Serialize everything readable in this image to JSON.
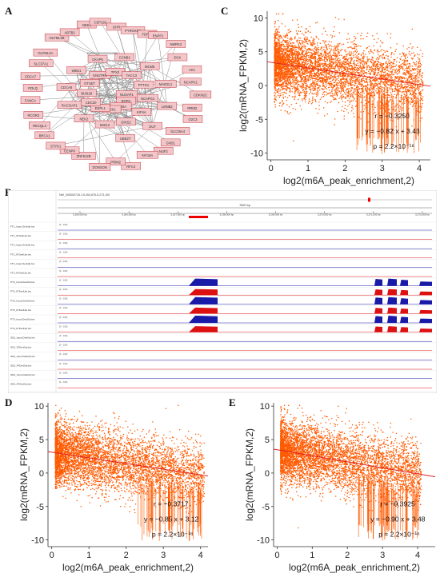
{
  "panels": {
    "A": "A",
    "B": "B",
    "C": "C",
    "D": "D",
    "E": "E"
  },
  "colors": {
    "scatter": "#ff5a00",
    "fit_line": "#e02020",
    "node_fill": "#f3c6c9",
    "node_stroke": "#c23b44",
    "track_blue": "#1a1aa8",
    "track_red": "#dd1111",
    "gene_blue": "#1a1aa8"
  },
  "network": {
    "nodes": [
      "OLFML2A",
      "OLFML2B",
      "ABTB2",
      "NEK3",
      "CEP192",
      "GHR",
      "PYROXD2",
      "FDFT1",
      "ENPP1",
      "NMRK2",
      "DCK",
      "AK1",
      "NCAPH2",
      "NUSAP1",
      "BORA",
      "KIF20A",
      "CDK1",
      "CDKN2C",
      "ESPL1",
      "CDC20",
      "BUB1B",
      "OTSET",
      "RRM2",
      "O2C3",
      "SLC25A4",
      "KNSTRN",
      "TPX2",
      "TACC3",
      "PTTG1",
      "NCAPG2",
      "KIF4A",
      "GINS2",
      "GNS1",
      "MIS12",
      "NEK2",
      "NUF2",
      "RACGAP1",
      "CDCA8",
      "WEE1",
      "CKAP5",
      "KIF18A",
      "CCNB2",
      "MCM5",
      "MAD2L1",
      "LMNB2",
      "DUT",
      "UBE2T",
      "RFC4",
      "PRIM2",
      "DONSON",
      "ZNF512B",
      "CENPK",
      "STYK1",
      "BRCA1",
      "RECQL4",
      "RCOR3",
      "FANCA",
      "POLQ",
      "CDCA7",
      "SLC37A1"
    ],
    "center_label": "ENSG00000000000560"
  },
  "browser": {
    "locus": "NW_005000716.1:5,264,876-5,273,109",
    "scale_label": "7820 bp",
    "ticks": [
      "5,265,000 bp",
      "5,266,000 bp",
      "5,267,000 bp",
      "5,268,000 bp",
      "5,269,000 bp",
      "5,270,000 bp",
      "5,271,000 bp",
      "5,272,000 bp"
    ],
    "range_label": "[0 - 100]",
    "tracks": [
      {
        "name": "FT1_Input.DedUlp.bw",
        "color": "blue",
        "signal": false
      },
      {
        "name": "FT1_IP.DedUlp.bw",
        "color": "red",
        "signal": false
      },
      {
        "name": "FT2_Input.DedUlp.bw",
        "color": "blue",
        "signal": false
      },
      {
        "name": "FT2_IP.DedUlp.bw",
        "color": "red",
        "signal": false
      },
      {
        "name": "FT3_Input.DedUlp.bw",
        "color": "blue",
        "signal": false
      },
      {
        "name": "FT3_IP.DedUlp.bw",
        "color": "red",
        "signal": false
      },
      {
        "name": "PT1_Input.DedUlp.bw",
        "color": "blue",
        "signal": true
      },
      {
        "name": "PT1_IP.DedUlp.bw",
        "color": "red",
        "signal": true
      },
      {
        "name": "PT2_Input.DedUlp.bw",
        "color": "blue",
        "signal": true
      },
      {
        "name": "PT2_IP.DedUlp.bw",
        "color": "red",
        "signal": true
      },
      {
        "name": "PT3_Input.DedUlp.bw",
        "color": "blue",
        "signal": true
      },
      {
        "name": "PT3_IP.DedUlp.bw",
        "color": "red",
        "signal": true
      },
      {
        "name": "SD1_Input.DedUlp.bw",
        "color": "blue",
        "signal": false
      },
      {
        "name": "SD1_IP.DedUlp.bw",
        "color": "red",
        "signal": false
      },
      {
        "name": "SD2_Input.DedUlp.bw",
        "color": "blue",
        "signal": false
      },
      {
        "name": "SD2_IP.DedUlp.bw",
        "color": "red",
        "signal": false
      },
      {
        "name": "SD3_Input.DedUlp.bw",
        "color": "blue",
        "signal": false
      },
      {
        "name": "SD3_IP.DedUlp.bw",
        "color": "red",
        "signal": false
      }
    ],
    "gene_track": "genome.gtf",
    "gene_name": "DCK1"
  },
  "chart_data": [
    {
      "panel": "C",
      "type": "scatter",
      "xlabel": "log2(m6A_peak_enrichment,2)",
      "ylabel": "log2(mRNA_FPKM,2)",
      "xlim": [
        -0.1,
        4.3
      ],
      "ylim": [
        -11,
        11
      ],
      "xticks": [
        "0",
        "1",
        "2",
        "3",
        "4"
      ],
      "yticks": [
        "-10",
        "-5",
        "0",
        "5",
        "10"
      ],
      "fit": {
        "slope": -0.82,
        "intercept": 3.43
      },
      "annotations": [
        "r = −0.3250",
        "y = −0.82 x + 3.43",
        "p = 2.2×10⁻¹⁶"
      ]
    },
    {
      "panel": "D",
      "type": "scatter",
      "xlabel": "log2(m6A_peak_enrichment,2)",
      "ylabel": "log2(mRNA_FPKM,2)",
      "xlim": [
        -0.1,
        4.2
      ],
      "ylim": [
        -11,
        10.5
      ],
      "xticks": [
        "0",
        "1",
        "2",
        "3",
        "4"
      ],
      "yticks": [
        "-10",
        "-5",
        "0",
        "5",
        "10"
      ],
      "fit": {
        "slope": -0.85,
        "intercept": 3.12
      },
      "annotations": [
        "r = −0.3717",
        "y = −0.85 x + 3.12",
        "p = 2.2×10⁻¹⁶"
      ]
    },
    {
      "panel": "E",
      "type": "scatter",
      "xlabel": "log2(m6A_peak_enrichment,2)",
      "ylabel": "log2(mRNA_FPKM,2)",
      "xlim": [
        -0.1,
        4.5
      ],
      "ylim": [
        -11,
        10.5
      ],
      "xticks": [
        "0",
        "1",
        "2",
        "3",
        "4"
      ],
      "yticks": [
        "-10",
        "-5",
        "0",
        "5",
        "10"
      ],
      "fit": {
        "slope": -0.9,
        "intercept": 3.48
      },
      "annotations": [
        "r = −0.3925",
        "y = −0.90 x + 3.48",
        "p = 2.2×10⁻¹⁶"
      ]
    }
  ]
}
